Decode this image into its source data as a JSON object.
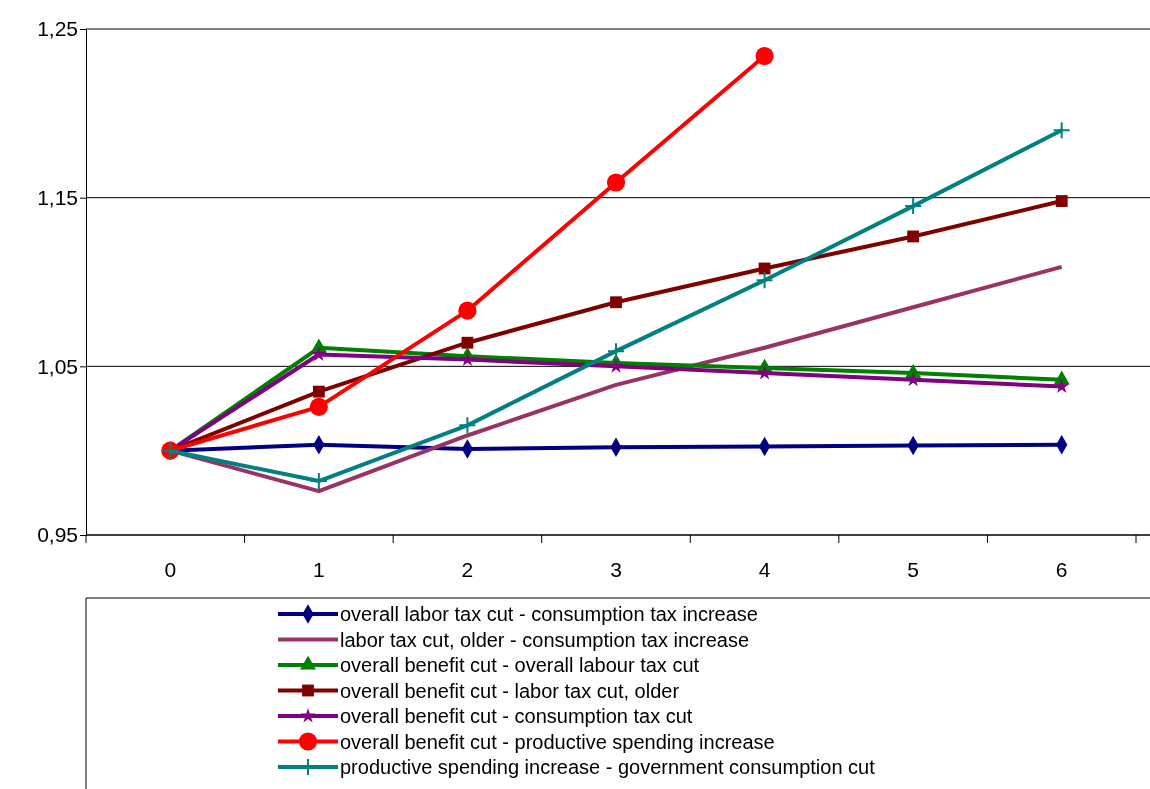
{
  "chart_data": {
    "type": "line",
    "categories": [
      "0",
      "1",
      "2",
      "3",
      "4",
      "5",
      "6"
    ],
    "ylim": [
      0.95,
      1.25
    ],
    "yticks": [
      {
        "value": 0.95,
        "label": "0,95"
      },
      {
        "value": 1.05,
        "label": "1,05"
      },
      {
        "value": 1.15,
        "label": "1,15"
      },
      {
        "value": 1.25,
        "label": "1,25"
      }
    ],
    "grid": "y",
    "legend": "bottom",
    "series": [
      {
        "name": "overall labor tax cut - consumption tax increase",
        "color": "#000080",
        "marker": "diamond",
        "values": [
          1.0,
          1.0035,
          1.001,
          1.002,
          1.0025,
          1.003,
          1.0035
        ]
      },
      {
        "name": "labor tax cut, older - consumption tax increase",
        "color": "#993366",
        "marker": "none",
        "values": [
          1.0,
          0.976,
          1.009,
          1.039,
          1.061,
          1.085,
          1.109
        ]
      },
      {
        "name": "overall benefit cut - overall labour tax cut",
        "color": "#008000",
        "marker": "triangle",
        "values": [
          1.0,
          1.061,
          1.056,
          1.052,
          1.049,
          1.046,
          1.042
        ]
      },
      {
        "name": "overall benefit cut - labor tax cut, older",
        "color": "#800000",
        "marker": "square",
        "values": [
          1.0,
          1.035,
          1.064,
          1.088,
          1.108,
          1.127,
          1.148
        ]
      },
      {
        "name": "overall benefit cut - consumption tax cut",
        "color": "#800080",
        "marker": "star",
        "values": [
          1.0,
          1.057,
          1.054,
          1.05,
          1.046,
          1.042,
          1.038
        ]
      },
      {
        "name": "overall benefit cut - productive spending increase",
        "color": "#ff0000",
        "marker": "circle",
        "values": [
          1.0,
          1.026,
          1.083,
          1.159,
          1.234,
          null,
          null
        ]
      },
      {
        "name": "productive spending increase - government consumption cut",
        "color": "#008080",
        "marker": "cross",
        "values": [
          1.0,
          0.982,
          1.015,
          1.059,
          1.101,
          1.145,
          1.19
        ]
      }
    ]
  }
}
